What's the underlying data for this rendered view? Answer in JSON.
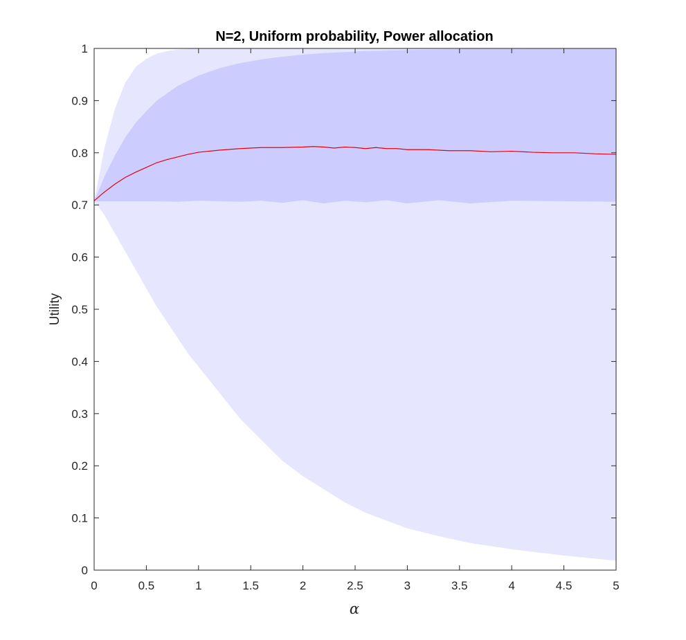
{
  "chart_data": {
    "type": "area",
    "title": "N=2, Uniform probability, Power allocation",
    "xlabel": "α",
    "ylabel": "Utility",
    "xlim": [
      0,
      5
    ],
    "ylim": [
      0,
      1
    ],
    "xticks": [
      "0",
      "0.5",
      "1",
      "1.5",
      "2",
      "2.5",
      "3",
      "3.5",
      "4",
      "4.5",
      "5"
    ],
    "yticks": [
      "0",
      "0.1",
      "0.2",
      "0.3",
      "0.4",
      "0.5",
      "0.6",
      "0.7",
      "0.8",
      "0.9",
      "1"
    ],
    "grid": false,
    "colors": {
      "outer_band": "#e6e6ff",
      "inner_band": "#ccccff",
      "mean_line": "#e8000b"
    },
    "outer_band": {
      "x": [
        0,
        0.1,
        0.2,
        0.3,
        0.4,
        0.5,
        0.6,
        0.7,
        0.8,
        0.9,
        1.0,
        1.2,
        1.4,
        1.6,
        1.8,
        2.0,
        2.2,
        2.4,
        2.6,
        2.8,
        3.0,
        3.3,
        3.6,
        4.0,
        4.5,
        5.0
      ],
      "lower": [
        0.707,
        0.68,
        0.645,
        0.61,
        0.575,
        0.54,
        0.505,
        0.475,
        0.445,
        0.415,
        0.39,
        0.34,
        0.29,
        0.25,
        0.21,
        0.18,
        0.155,
        0.13,
        0.11,
        0.095,
        0.08,
        0.065,
        0.052,
        0.04,
        0.028,
        0.018
      ],
      "upper": [
        0.707,
        0.81,
        0.885,
        0.935,
        0.965,
        0.98,
        0.99,
        0.995,
        0.998,
        0.999,
        1.0,
        1.0,
        1.0,
        1.0,
        1.0,
        1.0,
        1.0,
        1.0,
        1.0,
        1.0,
        1.0,
        1.0,
        1.0,
        1.0,
        1.0,
        1.0
      ]
    },
    "inner_band": {
      "x": [
        0,
        0.1,
        0.2,
        0.3,
        0.4,
        0.5,
        0.6,
        0.8,
        1.0,
        1.2,
        1.4,
        1.6,
        1.8,
        2.0,
        2.2,
        2.4,
        2.6,
        2.8,
        3.0,
        3.3,
        3.6,
        4.0,
        4.5,
        5.0
      ],
      "lower": [
        0.707,
        0.707,
        0.707,
        0.707,
        0.707,
        0.707,
        0.707,
        0.706,
        0.708,
        0.707,
        0.706,
        0.708,
        0.704,
        0.709,
        0.703,
        0.708,
        0.705,
        0.709,
        0.703,
        0.709,
        0.703,
        0.708,
        0.707,
        0.706
      ],
      "upper": [
        0.707,
        0.755,
        0.795,
        0.83,
        0.858,
        0.88,
        0.9,
        0.928,
        0.948,
        0.962,
        0.972,
        0.979,
        0.984,
        0.988,
        0.991,
        0.993,
        0.995,
        0.996,
        0.997,
        0.998,
        0.999,
        0.999,
        1.0,
        1.0
      ]
    },
    "series": [
      {
        "x": [
          0,
          0.1,
          0.2,
          0.3,
          0.4,
          0.5,
          0.6,
          0.7,
          0.8,
          0.9,
          1.0,
          1.2,
          1.4,
          1.6,
          1.8,
          2.0,
          2.1,
          2.2,
          2.3,
          2.4,
          2.5,
          2.6,
          2.7,
          2.8,
          2.9,
          3.0,
          3.2,
          3.4,
          3.6,
          3.8,
          4.0,
          4.2,
          4.4,
          4.6,
          4.8,
          5.0
        ],
        "values": [
          0.708,
          0.725,
          0.74,
          0.753,
          0.763,
          0.772,
          0.781,
          0.787,
          0.792,
          0.797,
          0.801,
          0.805,
          0.808,
          0.81,
          0.81,
          0.811,
          0.812,
          0.811,
          0.809,
          0.811,
          0.81,
          0.808,
          0.81,
          0.808,
          0.808,
          0.806,
          0.806,
          0.804,
          0.804,
          0.802,
          0.803,
          0.801,
          0.8,
          0.8,
          0.798,
          0.797
        ]
      }
    ]
  }
}
